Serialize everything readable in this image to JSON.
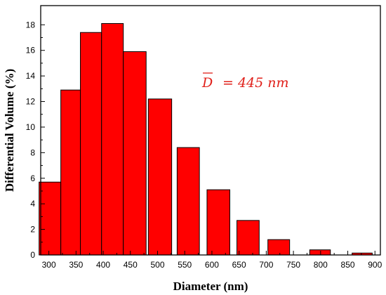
{
  "chart_data": {
    "type": "bar",
    "title": "",
    "xlabel": "Diameter (nm)",
    "ylabel": "Differential Volume (%)",
    "xlim": [
      285,
      910
    ],
    "ylim": [
      0,
      19.5
    ],
    "x_ticks": [
      300,
      350,
      400,
      450,
      500,
      550,
      600,
      650,
      700,
      750,
      800,
      850,
      900
    ],
    "y_ticks": [
      0,
      2,
      4,
      6,
      8,
      10,
      12,
      14,
      16,
      18
    ],
    "bars": [
      {
        "from": 282,
        "to": 322,
        "value": 5.7
      },
      {
        "from": 322,
        "to": 358,
        "value": 12.9
      },
      {
        "from": 358,
        "to": 397,
        "value": 17.4
      },
      {
        "from": 397,
        "to": 437,
        "value": 18.1
      },
      {
        "from": 437,
        "to": 479,
        "value": 15.9
      },
      {
        "from": 483,
        "to": 526,
        "value": 12.2
      },
      {
        "from": 536,
        "to": 577,
        "value": 8.4
      },
      {
        "from": 591,
        "to": 633,
        "value": 5.1
      },
      {
        "from": 646,
        "to": 687,
        "value": 2.7
      },
      {
        "from": 703,
        "to": 743,
        "value": 1.2
      },
      {
        "from": 780,
        "to": 818,
        "value": 0.4
      },
      {
        "from": 858,
        "to": 895,
        "value": 0.15
      }
    ],
    "bar_color": "#ff0000",
    "annotation": {
      "symbol": "D",
      "text": "= 445 nm",
      "color": "#e0201a"
    },
    "grid": false
  }
}
